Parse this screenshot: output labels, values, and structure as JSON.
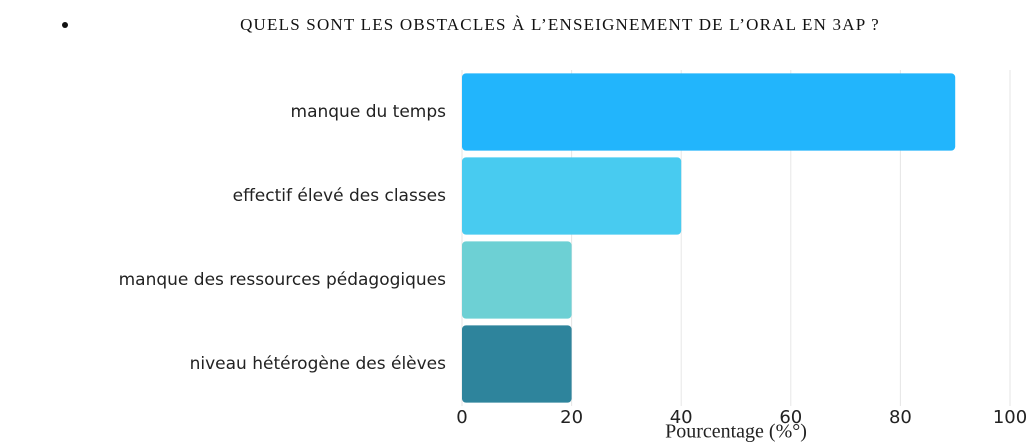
{
  "chart_data": {
    "type": "bar",
    "orientation": "horizontal",
    "title": "QUELS SONT LES OBSTACLES À L’ENSEIGNEMENT DE L’ORAL EN 3AP ?",
    "categories": [
      "manque du temps",
      "effectif élevé des classes",
      "manque des ressources pédagogiques",
      "niveau hétérogène des élèves"
    ],
    "values": [
      90,
      40,
      20,
      20
    ],
    "colors": [
      "#22b5fc",
      "#48cbf0",
      "#6dd0d4",
      "#2e849c"
    ],
    "xlabel": "Pourcentage (%°)",
    "xlim": [
      0,
      100
    ],
    "xticks": [
      0,
      20,
      40,
      60,
      80,
      100
    ],
    "grid": true
  }
}
